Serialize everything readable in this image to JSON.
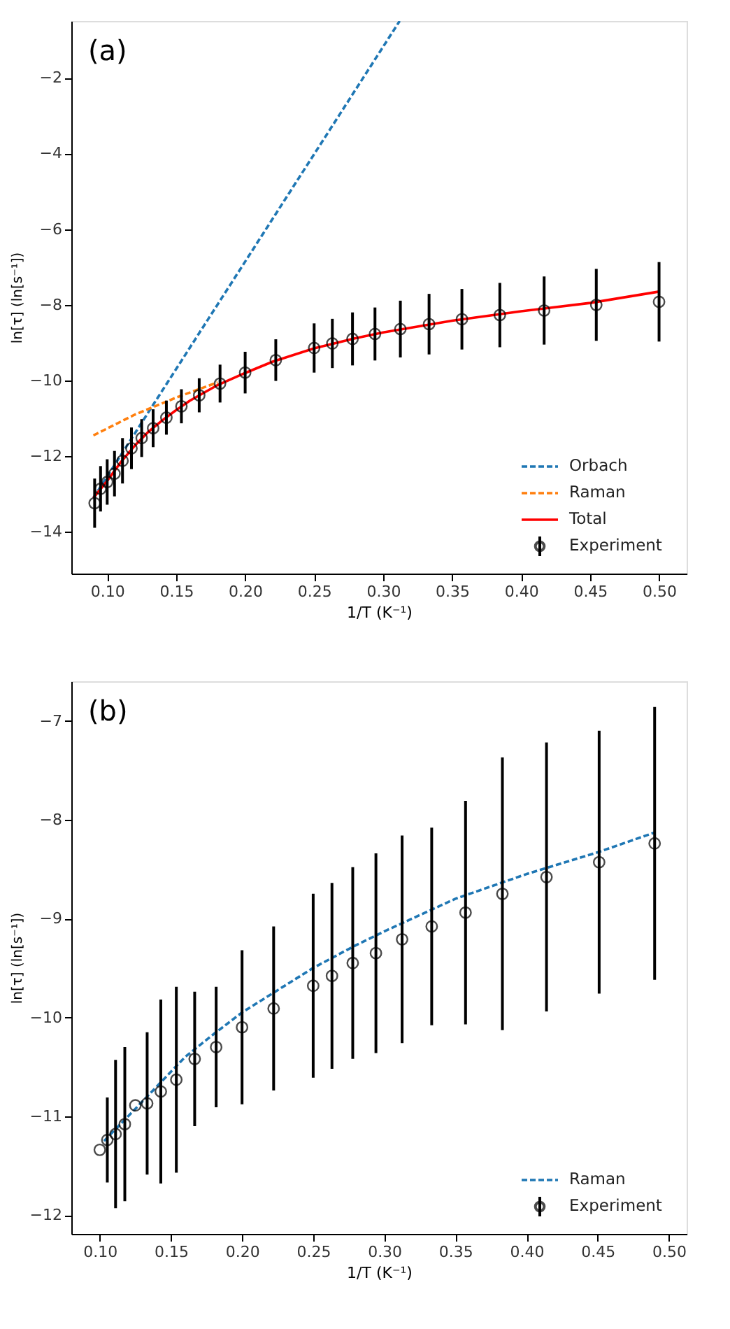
{
  "chart_data": [
    {
      "type": "line",
      "xlabel": "1/T (K⁻¹)",
      "ylabel": "ln[τ] (ln[s⁻¹])",
      "annotations": [
        "(a)"
      ],
      "xlim": [
        0.074,
        0.52
      ],
      "ylim": [
        -15.1,
        -0.5
      ],
      "xticks": [
        {
          "value": 0.1,
          "label": "0.10"
        },
        0.15,
        {
          "value": 0.2,
          "label": "0.20"
        },
        0.25,
        {
          "value": 0.3,
          "label": "0.30"
        },
        0.35,
        {
          "value": 0.4,
          "label": "0.40"
        },
        0.45,
        {
          "value": 0.5,
          "label": "0.50"
        }
      ],
      "yticks": [
        -14,
        -12,
        -10,
        -8,
        -6,
        -4,
        -2
      ],
      "grid": false,
      "legend": "bottom right",
      "series": [
        {
          "name": "Orbach",
          "line_style": "dashed",
          "color": "#1f77b4",
          "x": [
            0.09,
            0.312
          ],
          "values": [
            -13.1,
            -0.5
          ]
        },
        {
          "name": "Raman",
          "line_style": "dashed",
          "color": "#ff7f0e",
          "x": [
            0.09,
            0.12,
            0.15,
            0.18
          ],
          "values": [
            -11.45,
            -10.9,
            -10.45,
            -10.05
          ]
        },
        {
          "name": "Total",
          "line_style": "solid",
          "color": "#ff0000",
          "x": [
            0.09,
            0.1,
            0.11,
            0.12,
            0.13,
            0.14,
            0.15,
            0.16,
            0.18,
            0.2,
            0.22,
            0.25,
            0.28,
            0.3,
            0.35,
            0.4,
            0.45,
            0.5
          ],
          "values": [
            -13.1,
            -12.65,
            -12.15,
            -11.72,
            -11.35,
            -11.05,
            -10.78,
            -10.53,
            -10.12,
            -9.8,
            -9.5,
            -9.15,
            -8.88,
            -8.73,
            -8.42,
            -8.17,
            -7.95,
            -7.65
          ]
        },
        {
          "name": "Experiment",
          "type": "scatter",
          "marker": "circle",
          "color": "#000000",
          "x": [
            0.0909,
            0.0952,
            0.1,
            0.1053,
            0.1111,
            0.1176,
            0.125,
            0.1333,
            0.1429,
            0.1538,
            0.1667,
            0.1818,
            0.2,
            0.2222,
            0.25,
            0.2632,
            0.2778,
            0.2941,
            0.3125,
            0.3333,
            0.3571,
            0.3846,
            0.4167,
            0.4545,
            0.5
          ],
          "values": [
            -13.24,
            -12.86,
            -12.68,
            -12.46,
            -12.12,
            -11.79,
            -11.52,
            -11.26,
            -10.98,
            -10.68,
            -10.39,
            -10.08,
            -9.79,
            -9.46,
            -9.14,
            -9.02,
            -8.9,
            -8.77,
            -8.64,
            -8.51,
            -8.38,
            -8.27,
            -8.15,
            -8.0,
            -7.92
          ],
          "errors": [
            0.65,
            0.6,
            0.6,
            0.6,
            0.6,
            0.55,
            0.5,
            0.5,
            0.45,
            0.45,
            0.45,
            0.5,
            0.55,
            0.55,
            0.65,
            0.65,
            0.7,
            0.7,
            0.75,
            0.8,
            0.8,
            0.85,
            0.9,
            0.95,
            1.05
          ]
        }
      ]
    },
    {
      "type": "line",
      "xlabel": "1/T (K⁻¹)",
      "ylabel": "ln[τ] (ln[s⁻¹])",
      "annotations": [
        "(b)"
      ],
      "xlim": [
        0.08,
        0.5125
      ],
      "ylim": [
        -12.19,
        -6.6
      ],
      "xticks": [
        {
          "value": 0.1,
          "label": "0.10"
        },
        0.15,
        {
          "value": 0.2,
          "label": "0.20"
        },
        0.25,
        {
          "value": 0.3,
          "label": "0.30"
        },
        0.35,
        {
          "value": 0.4,
          "label": "0.40"
        },
        0.45,
        {
          "value": 0.5,
          "label": "0.50"
        }
      ],
      "yticks": [
        -12,
        -11,
        -10,
        -9,
        -8,
        -7
      ],
      "grid": false,
      "legend": "bottom right",
      "series": [
        {
          "name": "Raman",
          "line_style": "dashed",
          "color": "#1f77b4",
          "x": [
            0.103,
            0.12,
            0.14,
            0.16,
            0.18,
            0.2,
            0.22,
            0.25,
            0.28,
            0.3,
            0.35,
            0.4,
            0.45,
            0.49
          ],
          "values": [
            -11.25,
            -11.0,
            -10.7,
            -10.4,
            -10.17,
            -9.95,
            -9.77,
            -9.5,
            -9.27,
            -9.13,
            -8.8,
            -8.55,
            -8.33,
            -8.13
          ]
        },
        {
          "name": "Experiment",
          "type": "scatter",
          "marker": "circle",
          "color": "#000000",
          "x": [
            0.1,
            0.1053,
            0.1111,
            0.1176,
            0.125,
            0.1333,
            0.1429,
            0.1538,
            0.1667,
            0.1818,
            0.2,
            0.2222,
            0.25,
            0.2632,
            0.2778,
            0.2941,
            0.3125,
            0.3333,
            0.3571,
            0.383,
            0.414,
            0.451,
            0.49
          ],
          "values": [
            -11.34,
            -11.24,
            -11.18,
            -11.08,
            -10.89,
            -10.87,
            -10.75,
            -10.63,
            -10.42,
            -10.3,
            -10.1,
            -9.91,
            -9.68,
            -9.58,
            -9.45,
            -9.35,
            -9.21,
            -9.08,
            -8.94,
            -8.75,
            -8.58,
            -8.43,
            -8.24
          ],
          "errors": [
            null,
            0.43,
            0.75,
            0.78,
            null,
            0.72,
            0.93,
            0.94,
            0.68,
            0.61,
            0.78,
            0.83,
            0.93,
            0.94,
            0.97,
            1.01,
            1.05,
            1.0,
            1.13,
            1.38,
            1.36,
            1.33,
            1.38
          ]
        }
      ]
    }
  ]
}
